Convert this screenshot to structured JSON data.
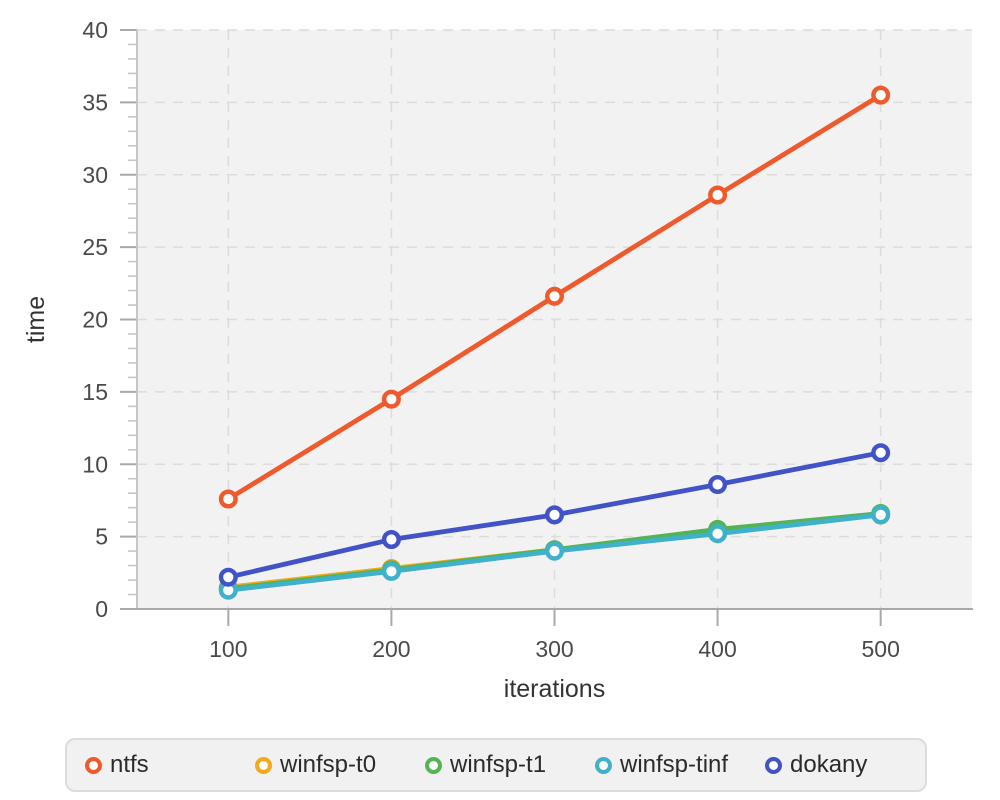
{
  "chart_data": {
    "type": "line",
    "x": [
      100,
      200,
      300,
      400,
      500
    ],
    "series": [
      {
        "name": "ntfs",
        "color": "#EE5A2C",
        "values": [
          7.6,
          14.5,
          21.6,
          28.6,
          35.5
        ]
      },
      {
        "name": "winfsp-t0",
        "color": "#F5A81C",
        "values": [
          1.5,
          2.8,
          4.1,
          5.4,
          6.5
        ]
      },
      {
        "name": "winfsp-t1",
        "color": "#52B452",
        "values": [
          1.4,
          2.7,
          4.1,
          5.5,
          6.6
        ]
      },
      {
        "name": "winfsp-tinf",
        "color": "#3FB1CB",
        "values": [
          1.3,
          2.6,
          4.0,
          5.2,
          6.5
        ]
      },
      {
        "name": "dokany",
        "color": "#4252C7",
        "values": [
          2.2,
          4.8,
          6.5,
          8.6,
          10.8
        ]
      }
    ],
    "draw_order": [
      "winfsp-t0",
      "winfsp-t1",
      "winfsp-tinf",
      "dokany",
      "ntfs"
    ],
    "title": "",
    "xlabel": "iterations",
    "ylabel": "time",
    "xlim": [
      44,
      556
    ],
    "ylim": [
      0,
      40
    ],
    "x_ticks": [
      100,
      200,
      300,
      400,
      500
    ],
    "y_ticks": [
      0,
      5,
      10,
      15,
      20,
      25,
      30,
      35,
      40
    ],
    "y_minor_step": 1,
    "grid": true,
    "legend_position": "bottom"
  },
  "styles": {
    "plot_bg": "#f2f2f3",
    "grid_color": "#dcdcdc",
    "axis_line_color": "#a9a9a9",
    "minor_tick_color": "#c6c6c6",
    "tick_label_color": "#4a4a4a",
    "axis_title_color": "#333333",
    "marker_fill": "#ffffff"
  }
}
